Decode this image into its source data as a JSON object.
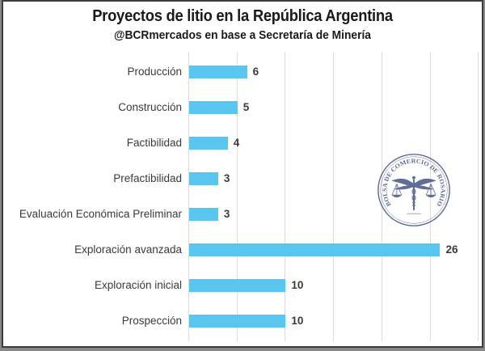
{
  "header": {
    "title": "Proyectos de litio en la República Argentina",
    "subtitle": "@BCRmercados en base a Secretaría de Minería"
  },
  "chart_data": {
    "type": "bar",
    "orientation": "horizontal",
    "title": "Proyectos de litio en la República Argentina",
    "subtitle": "@BCRmercados en base a Secretaría de Minería",
    "categories": [
      "Producción",
      "Construcción",
      "Factibilidad",
      "Prefactibilidad",
      "Evaluación Económica Preliminar",
      "Exploración avanzada",
      "Exploración inicial",
      "Prospección"
    ],
    "values": [
      6,
      5,
      4,
      3,
      3,
      26,
      10,
      10
    ],
    "xlim": [
      0,
      30
    ],
    "grid": true,
    "gridline_interval": 5,
    "legend": "none",
    "value_labels": "end-of-bar",
    "bar_color": "#58C6EE"
  },
  "watermark": {
    "seal_text": "BOLSA DE COMERCIO DE ROSARIO",
    "color": "#3D4E82"
  },
  "colors": {
    "background": "#FFFFFF",
    "frame_border": "#3C3C3C",
    "gridline": "#DCDCDC",
    "text": "#3A3A3A",
    "title_text": "#1A1A1A"
  }
}
